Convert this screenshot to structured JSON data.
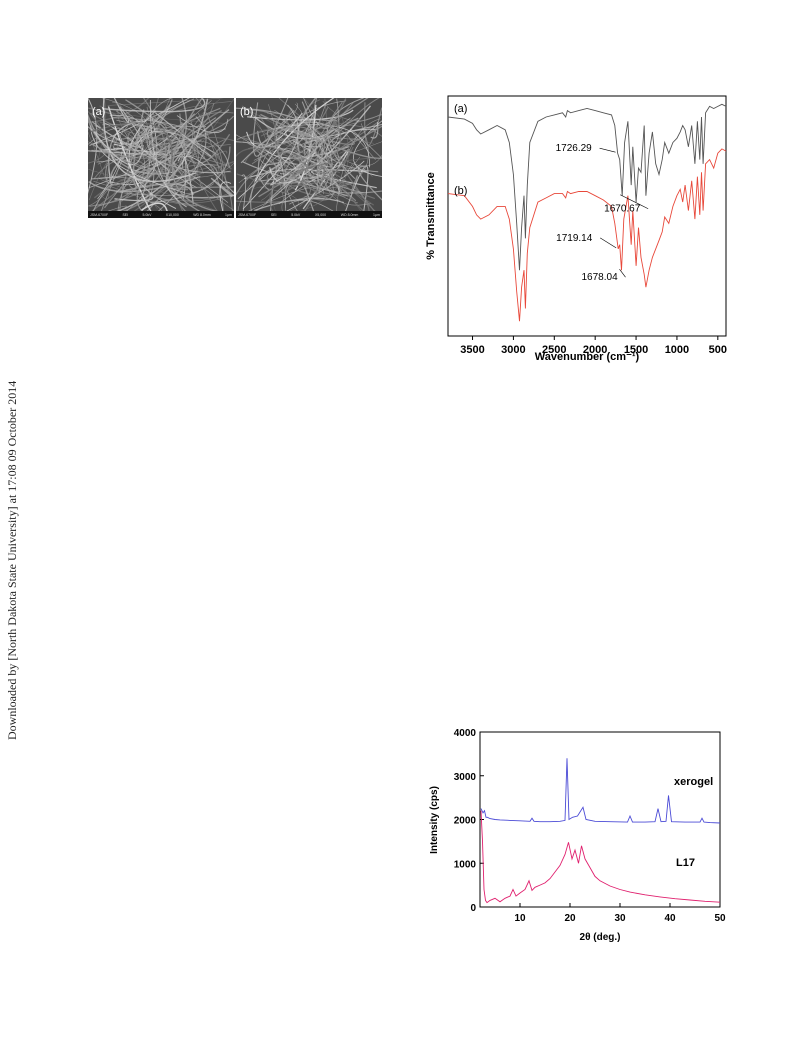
{
  "watermark": "Downloaded by [North Dakota State University] at 17:08 09 October 2014",
  "sem": {
    "panels": [
      {
        "label": "(a)",
        "footer": [
          "JSM-6700F",
          "SEI",
          "5.0kV",
          "X10,000",
          "WD 8.0mm",
          "1μm"
        ]
      },
      {
        "label": "(b)",
        "footer": [
          "JSM-6700F",
          "SEI",
          "5.0kV",
          "X5,000",
          "WD 8.0mm",
          "1μm"
        ]
      }
    ]
  },
  "chart_data": [
    {
      "type": "line",
      "xlabel": "Wavenumber (cm⁻¹)",
      "ylabel": "% Transmittance",
      "xlim": [
        3800,
        400
      ],
      "xticks": [
        "3500",
        "3000",
        "2500",
        "2000",
        "1500",
        "1000",
        "500"
      ],
      "xtick_values": [
        3500,
        3000,
        2500,
        2000,
        1500,
        1000,
        500
      ],
      "series": [
        {
          "name": "(a)",
          "color": "#555555",
          "x": [
            3800,
            3600,
            3500,
            3450,
            3400,
            3300,
            3200,
            3100,
            3050,
            3000,
            2960,
            2925,
            2900,
            2870,
            2853,
            2830,
            2800,
            2700,
            2600,
            2500,
            2400,
            2360,
            2340,
            2300,
            2200,
            2100,
            2000,
            1900,
            1800,
            1760,
            1726,
            1700,
            1670,
            1640,
            1600,
            1560,
            1540,
            1500,
            1470,
            1440,
            1400,
            1380,
            1340,
            1300,
            1260,
            1220,
            1180,
            1150,
            1100,
            1050,
            1000,
            960,
            930,
            900,
            860,
            820,
            780,
            750,
            720,
            700,
            680,
            650,
            600,
            550,
            500,
            450,
            400
          ],
          "y": [
            92,
            91,
            89,
            86,
            84,
            86,
            88,
            86,
            80,
            65,
            42,
            20,
            40,
            55,
            35,
            60,
            80,
            90,
            92,
            93,
            94,
            92,
            95,
            94,
            95,
            96,
            95,
            94,
            93,
            88,
            75,
            72,
            55,
            80,
            90,
            60,
            78,
            52,
            68,
            66,
            88,
            55,
            75,
            85,
            70,
            65,
            72,
            80,
            75,
            80,
            82,
            85,
            88,
            86,
            78,
            88,
            70,
            90,
            72,
            92,
            70,
            94,
            97,
            96,
            97,
            98,
            97
          ]
        },
        {
          "name": "(b)",
          "color": "#e8483a",
          "x": [
            3800,
            3600,
            3500,
            3450,
            3400,
            3300,
            3200,
            3100,
            3050,
            3000,
            2960,
            2925,
            2900,
            2870,
            2853,
            2830,
            2800,
            2700,
            2600,
            2500,
            2400,
            2360,
            2340,
            2300,
            2200,
            2100,
            2000,
            1900,
            1800,
            1760,
            1719,
            1700,
            1678,
            1650,
            1600,
            1560,
            1540,
            1500,
            1470,
            1440,
            1400,
            1380,
            1340,
            1300,
            1260,
            1220,
            1180,
            1150,
            1100,
            1050,
            1000,
            960,
            930,
            900,
            860,
            820,
            780,
            750,
            720,
            700,
            680,
            650,
            600,
            550,
            500,
            450,
            400
          ],
          "y": [
            56,
            55,
            50,
            46,
            44,
            46,
            50,
            50,
            44,
            30,
            10,
            -4,
            12,
            20,
            2,
            28,
            40,
            52,
            54,
            56,
            56,
            54,
            57,
            56,
            57,
            57,
            55,
            53,
            50,
            42,
            30,
            32,
            20,
            44,
            55,
            32,
            48,
            22,
            40,
            26,
            18,
            12,
            20,
            26,
            30,
            34,
            38,
            45,
            42,
            50,
            55,
            58,
            52,
            60,
            48,
            62,
            44,
            64,
            46,
            66,
            48,
            70,
            72,
            68,
            75,
            77,
            76
          ]
        }
      ],
      "annotations": [
        {
          "text": "1726.29",
          "series": 0,
          "x": 1726
        },
        {
          "text": "1670.67",
          "series": 0,
          "x": 1670
        },
        {
          "text": "1719.14",
          "series": 1,
          "x": 1719
        },
        {
          "text": "1678.04",
          "series": 1,
          "x": 1678
        }
      ]
    },
    {
      "type": "line",
      "xlabel": "2θ (deg.)",
      "ylabel": "Intensity (cps)",
      "xlim": [
        2,
        50
      ],
      "ylim": [
        0,
        4000
      ],
      "xticks": [
        "10",
        "20",
        "30",
        "40",
        "50"
      ],
      "xtick_values": [
        10,
        20,
        30,
        40,
        50
      ],
      "yticks": [
        "0",
        "1000",
        "2000",
        "3000",
        "4000"
      ],
      "ytick_values": [
        0,
        1000,
        2000,
        3000,
        4000
      ],
      "series": [
        {
          "name": "xerogel",
          "color": "#4b4bd6",
          "x": [
            2.2,
            2.6,
            2.9,
            3.2,
            3.5,
            4,
            5,
            6,
            8,
            10,
            12,
            12.4,
            12.8,
            14,
            16,
            18,
            19,
            19.4,
            19.8,
            20.5,
            21.5,
            22.6,
            23.2,
            25,
            28,
            31.5,
            32,
            32.5,
            35,
            37,
            37.6,
            38.2,
            39.2,
            39.7,
            40.3,
            43,
            46,
            46.4,
            46.8,
            48,
            50
          ],
          "y": [
            2250,
            2150,
            2200,
            2050,
            2050,
            2020,
            2000,
            1990,
            1980,
            1970,
            1960,
            2030,
            1960,
            1950,
            1950,
            1960,
            1980,
            3400,
            2000,
            2050,
            2080,
            2280,
            2000,
            1960,
            1950,
            1940,
            2080,
            1940,
            1940,
            1950,
            2250,
            1950,
            1960,
            2550,
            1950,
            1940,
            1940,
            2030,
            1940,
            1930,
            1920
          ]
        },
        {
          "name": "L17",
          "color": "#e0206e",
          "x": [
            2.2,
            2.5,
            2.8,
            3.1,
            3.4,
            4,
            5,
            6,
            7,
            8,
            8.6,
            9.2,
            10,
            11,
            11.8,
            12.4,
            13,
            14,
            15,
            16,
            17,
            18,
            19,
            19.7,
            20.4,
            21,
            21.7,
            22.3,
            23,
            24,
            25,
            26,
            28,
            30,
            32,
            35,
            38,
            41,
            44,
            47,
            50
          ],
          "y": [
            2200,
            1500,
            400,
            150,
            100,
            150,
            200,
            120,
            200,
            250,
            400,
            250,
            320,
            400,
            600,
            380,
            450,
            500,
            550,
            650,
            800,
            950,
            1200,
            1480,
            1100,
            1300,
            1000,
            1400,
            1100,
            900,
            700,
            600,
            480,
            400,
            340,
            280,
            230,
            190,
            160,
            130,
            110
          ]
        }
      ],
      "legend": [
        {
          "text": "xerogel",
          "series": 0
        },
        {
          "text": "L17",
          "series": 1
        }
      ]
    }
  ]
}
